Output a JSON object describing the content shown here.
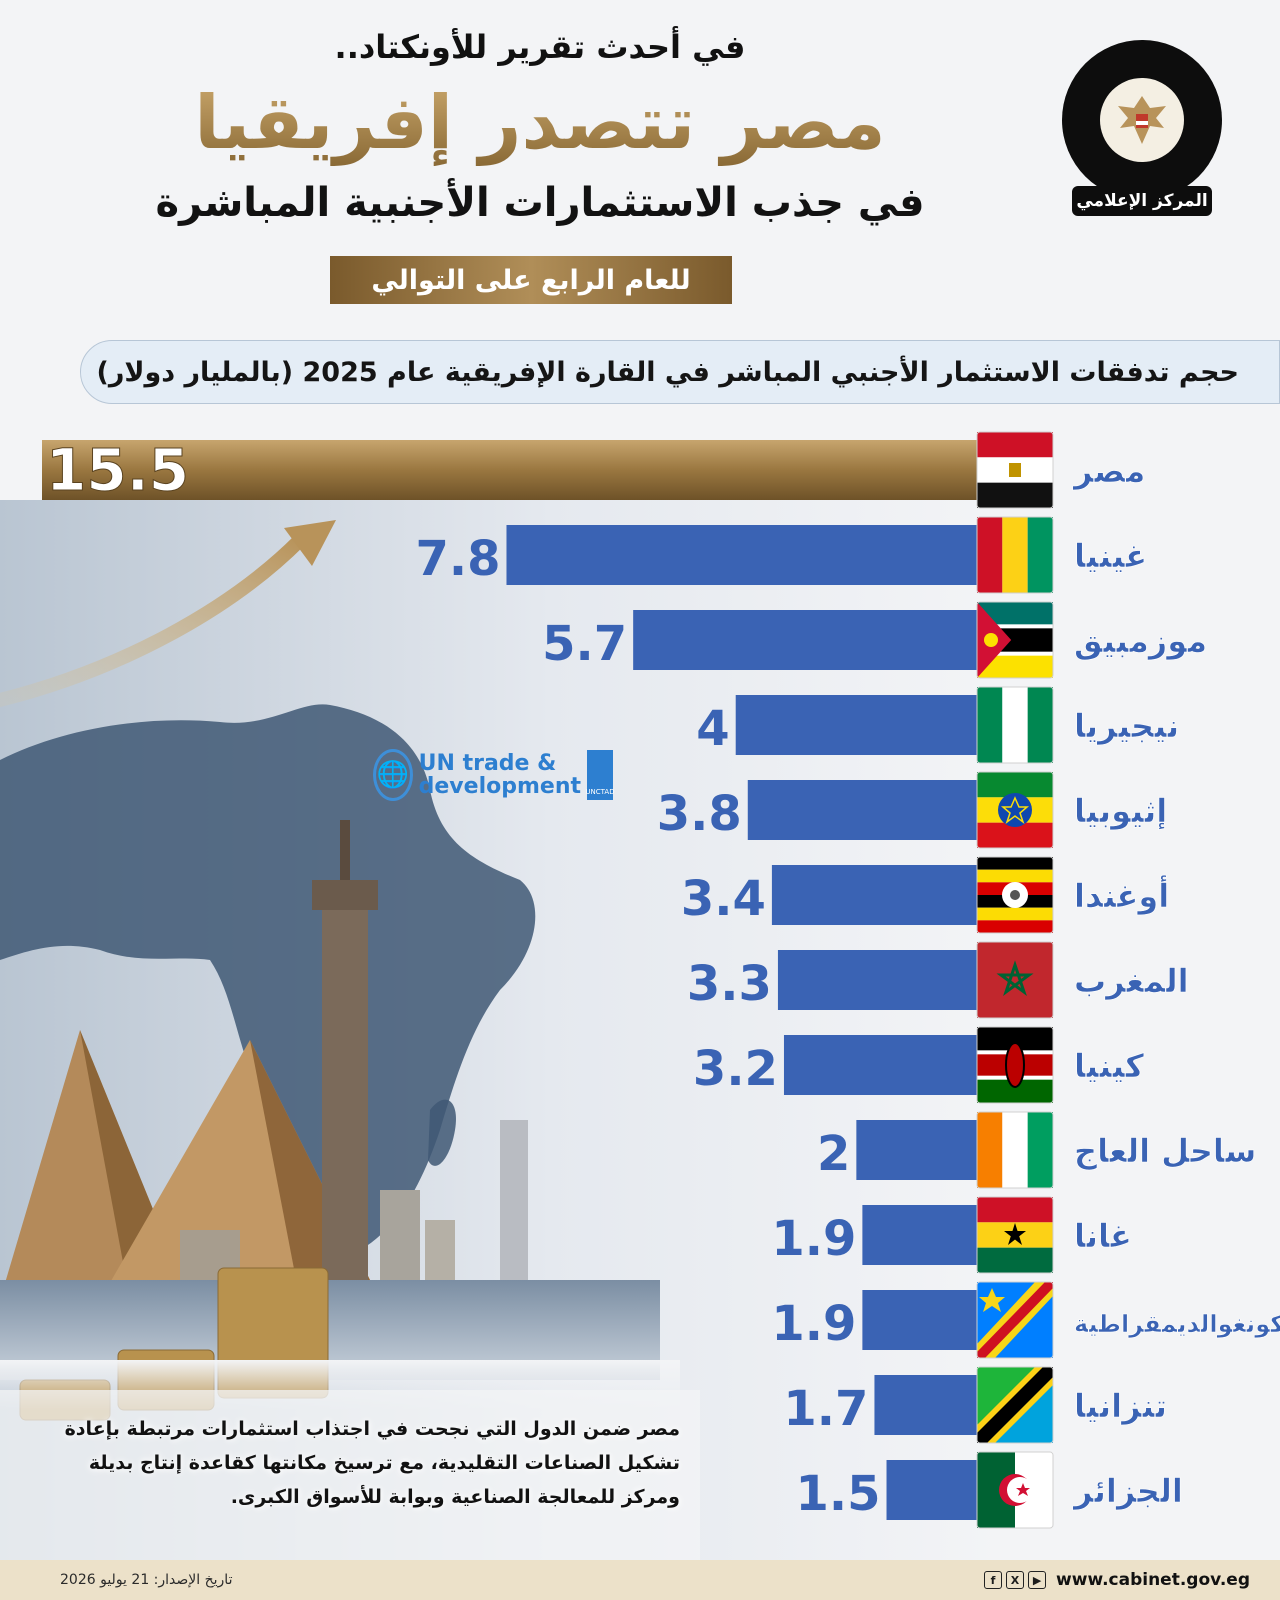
{
  "header": {
    "kicker": "في أحدث تقرير للأونكتاد..",
    "headline": "مصر تتصدر إفريقيا",
    "subheadline": "في جذب الاستثمارات الأجنبية المباشرة",
    "badge": "للعام الرابع على التوالي",
    "logo_ribbon": "المركز الإعلامي",
    "logo_emblem": "eagle-emblem-icon"
  },
  "chart_data": {
    "type": "bar",
    "orientation": "horizontal",
    "title": "حجم تدفقات الاستثمار الأجنبي المباشر في القارة الإفريقية عام 2025 (بالمليار دولار)",
    "categories": [
      "مصر",
      "غينيا",
      "موزمبيق",
      "نيجيريا",
      "إثيوبيا",
      "أوغندا",
      "المغرب",
      "كينيا",
      "ساحل العاج",
      "غانا",
      "الكونغوالديمقراطية",
      "تنزانيا",
      "الجزائر"
    ],
    "values": [
      15.5,
      7.8,
      5.7,
      4,
      3.8,
      3.4,
      3.3,
      3.2,
      2,
      1.9,
      1.9,
      1.7,
      1.5
    ],
    "value_labels": [
      "15.5",
      "7.8",
      "5.7",
      "4",
      "3.8",
      "3.4",
      "3.3",
      "3.2",
      "2",
      "1.9",
      "1.9",
      "1.7",
      "1.5"
    ],
    "flags": [
      "egypt",
      "guinea",
      "mozambique",
      "nigeria",
      "ethiopia",
      "uganda",
      "morocco",
      "kenya",
      "ivory-coast",
      "ghana",
      "dr-congo",
      "tanzania",
      "algeria"
    ],
    "xlim": [
      0,
      15.5
    ],
    "colors": {
      "highlight": "#9a7740",
      "bars": "#3a63b4"
    },
    "grid": false,
    "legend": "none"
  },
  "source_logo": {
    "line1": "UN trade &",
    "line2": "development",
    "box": "UNCTAD",
    "emblem": "un-emblem-icon"
  },
  "note": "مصر ضمن الدول التي نجحت في اجتذاب استثمارات مرتبطة بإعادة تشكيل الصناعات التقليدية، مع ترسيخ مكانتها كقاعدة إنتاج بديلة ومركز للمعالجة الصناعية وبوابة للأسواق الكبرى.",
  "footer": {
    "release_date": "تاريخ الإصدار: 21 يوليو 2026",
    "website": "www.cabinet.gov.eg",
    "social": [
      "f",
      "X",
      "▶"
    ]
  }
}
